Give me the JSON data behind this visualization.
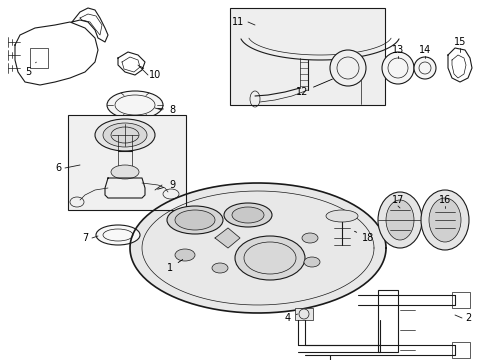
{
  "bg_color": "#ffffff",
  "lc": "#1a1a1a",
  "gray_fill": "#e8e8e8",
  "light_fill": "#f2f2f2",
  "mid_gray": "#b0b0b0",
  "fig_w": 4.89,
  "fig_h": 3.6,
  "dpi": 100
}
